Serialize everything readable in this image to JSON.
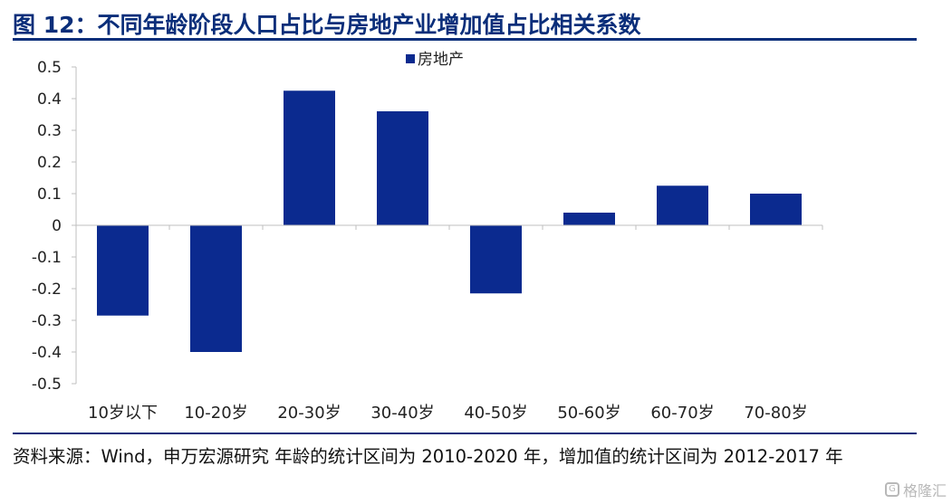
{
  "figure": {
    "title": "图 12：不同年龄阶段人口占比与房地产业增加值占比相关系数",
    "source": "资料来源：Wind，申万宏源研究  年龄的统计区间为  2010-2020 年，增加值的统计区间为 2012-2017 年",
    "watermark": "格隆汇"
  },
  "chart_data": {
    "type": "bar",
    "categories": [
      "10岁以下",
      "10-20岁",
      "20-30岁",
      "30-40岁",
      "40-50岁",
      "50-60岁",
      "60-70岁",
      "70-80岁"
    ],
    "series": [
      {
        "name": "房地产",
        "values": [
          -0.285,
          -0.4,
          0.425,
          0.36,
          -0.215,
          0.04,
          0.125,
          0.1
        ]
      }
    ],
    "ylim": [
      -0.5,
      0.5
    ],
    "yticks": [
      "0.5",
      "0.4",
      "0.3",
      "0.2",
      "0.1",
      "0",
      "-0.1",
      "-0.2",
      "-0.3",
      "-0.4",
      "-0.5"
    ],
    "grid": false,
    "legend_position": "top-center",
    "colors": {
      "bar": "#0b2a8f",
      "title": "#0a2e7a",
      "axis": "#bfbfbf"
    }
  }
}
